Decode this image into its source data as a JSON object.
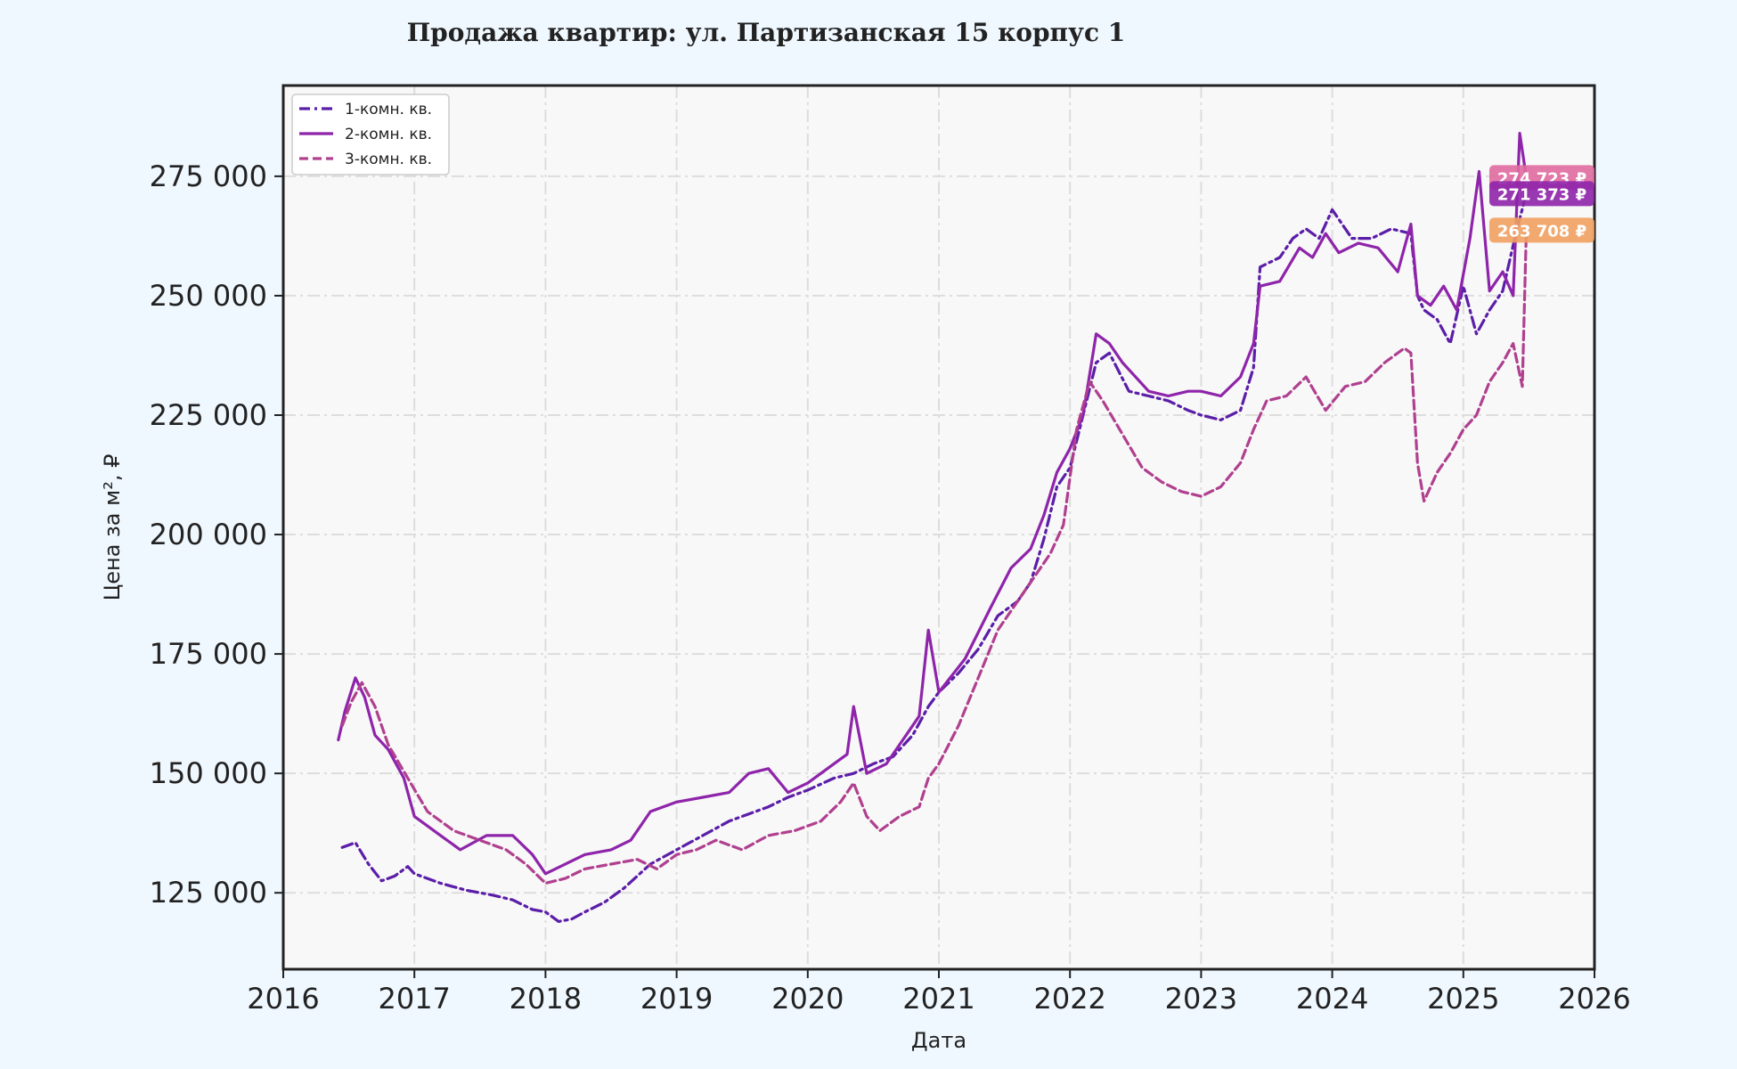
{
  "chart_data": {
    "type": "line",
    "title": "Продажа квартир: ул. Партизанская 15 корпус 1",
    "xlabel": "Дата",
    "ylabel": "Цена за м², ₽",
    "xlim": [
      2016.0,
      2026.0
    ],
    "ylim": [
      109000,
      294000
    ],
    "x_ticks": [
      2016,
      2017,
      2018,
      2019,
      2020,
      2021,
      2022,
      2023,
      2024,
      2025,
      2026
    ],
    "x_tick_labels": [
      "2016",
      "2017",
      "2018",
      "2019",
      "2020",
      "2021",
      "2022",
      "2023",
      "2024",
      "2025",
      "2026"
    ],
    "y_ticks": [
      125000,
      150000,
      175000,
      200000,
      225000,
      250000,
      275000
    ],
    "y_tick_labels": [
      "125 000",
      "150 000",
      "175 000",
      "200 000",
      "225 000",
      "250 000",
      "275 000"
    ],
    "grid": true,
    "legend_position": "top-left",
    "series": [
      {
        "name": "1-комн. кв.",
        "color": "#5b1ea8",
        "dash": "dashdot",
        "x": [
          2016.45,
          2016.55,
          2016.65,
          2016.75,
          2016.85,
          2016.95,
          2017.0,
          2017.2,
          2017.4,
          2017.6,
          2017.75,
          2017.9,
          2018.0,
          2018.1,
          2018.2,
          2018.3,
          2018.45,
          2018.6,
          2018.8,
          2019.0,
          2019.2,
          2019.4,
          2019.55,
          2019.7,
          2019.85,
          2020.0,
          2020.2,
          2020.35,
          2020.5,
          2020.65,
          2020.8,
          2020.92,
          2021.0,
          2021.15,
          2021.3,
          2021.45,
          2021.6,
          2021.7,
          2021.8,
          2021.9,
          2022.0,
          2022.1,
          2022.2,
          2022.3,
          2022.45,
          2022.6,
          2022.75,
          2022.9,
          2023.0,
          2023.15,
          2023.3,
          2023.4,
          2023.45,
          2023.6,
          2023.7,
          2023.8,
          2023.9,
          2024.0,
          2024.15,
          2024.3,
          2024.45,
          2024.6,
          2024.65,
          2024.7,
          2024.8,
          2024.9,
          2025.0,
          2025.1,
          2025.2,
          2025.3,
          2025.4,
          2025.48
        ],
        "y": [
          134500,
          135500,
          131000,
          127500,
          128500,
          130500,
          129000,
          127000,
          125500,
          124500,
          123500,
          121500,
          121000,
          119000,
          119500,
          121000,
          123000,
          126000,
          131000,
          134000,
          137000,
          140000,
          141500,
          143000,
          145000,
          146500,
          149000,
          150000,
          152000,
          153500,
          158000,
          164000,
          167000,
          171000,
          176000,
          183000,
          186000,
          190000,
          199000,
          210000,
          214000,
          225000,
          236000,
          238000,
          230000,
          229000,
          228000,
          226000,
          225000,
          224000,
          226000,
          235000,
          256000,
          258000,
          262000,
          264000,
          262000,
          268000,
          262000,
          262000,
          264000,
          263000,
          250000,
          247000,
          245000,
          240000,
          252000,
          242000,
          247000,
          251000,
          263000,
          271373
        ]
      },
      {
        "name": "2-комн. кв.",
        "color": "#8e24aa",
        "dash": "solid",
        "x": [
          2016.42,
          2016.47,
          2016.55,
          2016.62,
          2016.7,
          2016.8,
          2016.92,
          2017.0,
          2017.2,
          2017.35,
          2017.55,
          2017.75,
          2017.9,
          2018.0,
          2018.15,
          2018.3,
          2018.5,
          2018.65,
          2018.8,
          2019.0,
          2019.2,
          2019.4,
          2019.55,
          2019.7,
          2019.85,
          2020.0,
          2020.2,
          2020.3,
          2020.35,
          2020.45,
          2020.6,
          2020.75,
          2020.85,
          2020.92,
          2021.0,
          2021.2,
          2021.4,
          2021.55,
          2021.7,
          2021.8,
          2021.9,
          2022.0,
          2022.1,
          2022.2,
          2022.3,
          2022.4,
          2022.5,
          2022.6,
          2022.75,
          2022.9,
          2023.0,
          2023.15,
          2023.3,
          2023.4,
          2023.45,
          2023.6,
          2023.75,
          2023.85,
          2023.95,
          2024.05,
          2024.2,
          2024.35,
          2024.5,
          2024.6,
          2024.65,
          2024.75,
          2024.85,
          2024.95,
          2025.05,
          2025.12,
          2025.2,
          2025.3,
          2025.38,
          2025.43,
          2025.48
        ],
        "y": [
          157000,
          163000,
          170000,
          166000,
          158000,
          155000,
          149000,
          141000,
          137000,
          134000,
          137000,
          137000,
          133000,
          129000,
          131000,
          133000,
          134000,
          136000,
          142000,
          144000,
          145000,
          146000,
          150000,
          151000,
          146000,
          148000,
          152000,
          154000,
          164000,
          150000,
          152000,
          158000,
          162000,
          180000,
          167000,
          174000,
          185000,
          193000,
          197000,
          204000,
          213000,
          218000,
          225000,
          242000,
          240000,
          236000,
          233000,
          230000,
          229000,
          230000,
          230000,
          229000,
          233000,
          240000,
          252000,
          253000,
          260000,
          258000,
          263000,
          259000,
          261000,
          260000,
          255000,
          265000,
          250000,
          248000,
          252000,
          247000,
          262000,
          276000,
          251000,
          255000,
          250000,
          284000,
          274723
        ]
      },
      {
        "name": "3-комн. кв.",
        "color": "#b0408f",
        "dash": "dashed",
        "x": [
          2016.45,
          2016.52,
          2016.6,
          2016.7,
          2016.8,
          2016.95,
          2017.1,
          2017.3,
          2017.5,
          2017.7,
          2017.85,
          2018.0,
          2018.15,
          2018.3,
          2018.5,
          2018.7,
          2018.85,
          2019.0,
          2019.15,
          2019.3,
          2019.5,
          2019.7,
          2019.9,
          2020.1,
          2020.25,
          2020.35,
          2020.45,
          2020.55,
          2020.7,
          2020.85,
          2020.92,
          2021.0,
          2021.15,
          2021.3,
          2021.45,
          2021.6,
          2021.75,
          2021.85,
          2021.95,
          2022.05,
          2022.15,
          2022.25,
          2022.4,
          2022.55,
          2022.7,
          2022.85,
          2023.0,
          2023.15,
          2023.3,
          2023.4,
          2023.5,
          2023.65,
          2023.8,
          2023.95,
          2024.1,
          2024.25,
          2024.4,
          2024.55,
          2024.6,
          2024.65,
          2024.7,
          2024.8,
          2024.9,
          2025.0,
          2025.1,
          2025.2,
          2025.3,
          2025.38,
          2025.45,
          2025.48
        ],
        "y": [
          160000,
          165000,
          169000,
          164000,
          156000,
          149000,
          142000,
          138000,
          136000,
          134000,
          131000,
          127000,
          128000,
          130000,
          131000,
          132000,
          130000,
          133000,
          134000,
          136000,
          134000,
          137000,
          138000,
          140000,
          144000,
          148000,
          141000,
          138000,
          141000,
          143000,
          149000,
          152000,
          160000,
          170000,
          180000,
          186000,
          192000,
          196000,
          202000,
          222000,
          232000,
          228000,
          221000,
          214000,
          211000,
          209000,
          208000,
          210000,
          215000,
          222000,
          228000,
          229000,
          233000,
          226000,
          231000,
          232000,
          236000,
          239000,
          238000,
          215000,
          207000,
          213000,
          217000,
          222000,
          225000,
          232000,
          236000,
          240000,
          231000,
          263708
        ]
      }
    ],
    "annotations": [
      {
        "series": "2-комн. кв.",
        "text": "274 723 ₽",
        "value": 274723,
        "color": "#e06aa0"
      },
      {
        "series": "1-комн. кв.",
        "text": "271 373 ₽",
        "value": 271373,
        "color": "#8e24aa"
      },
      {
        "series": "3-комн. кв.",
        "text": "263 708 ₽",
        "value": 263708,
        "color": "#f0a060"
      }
    ]
  }
}
